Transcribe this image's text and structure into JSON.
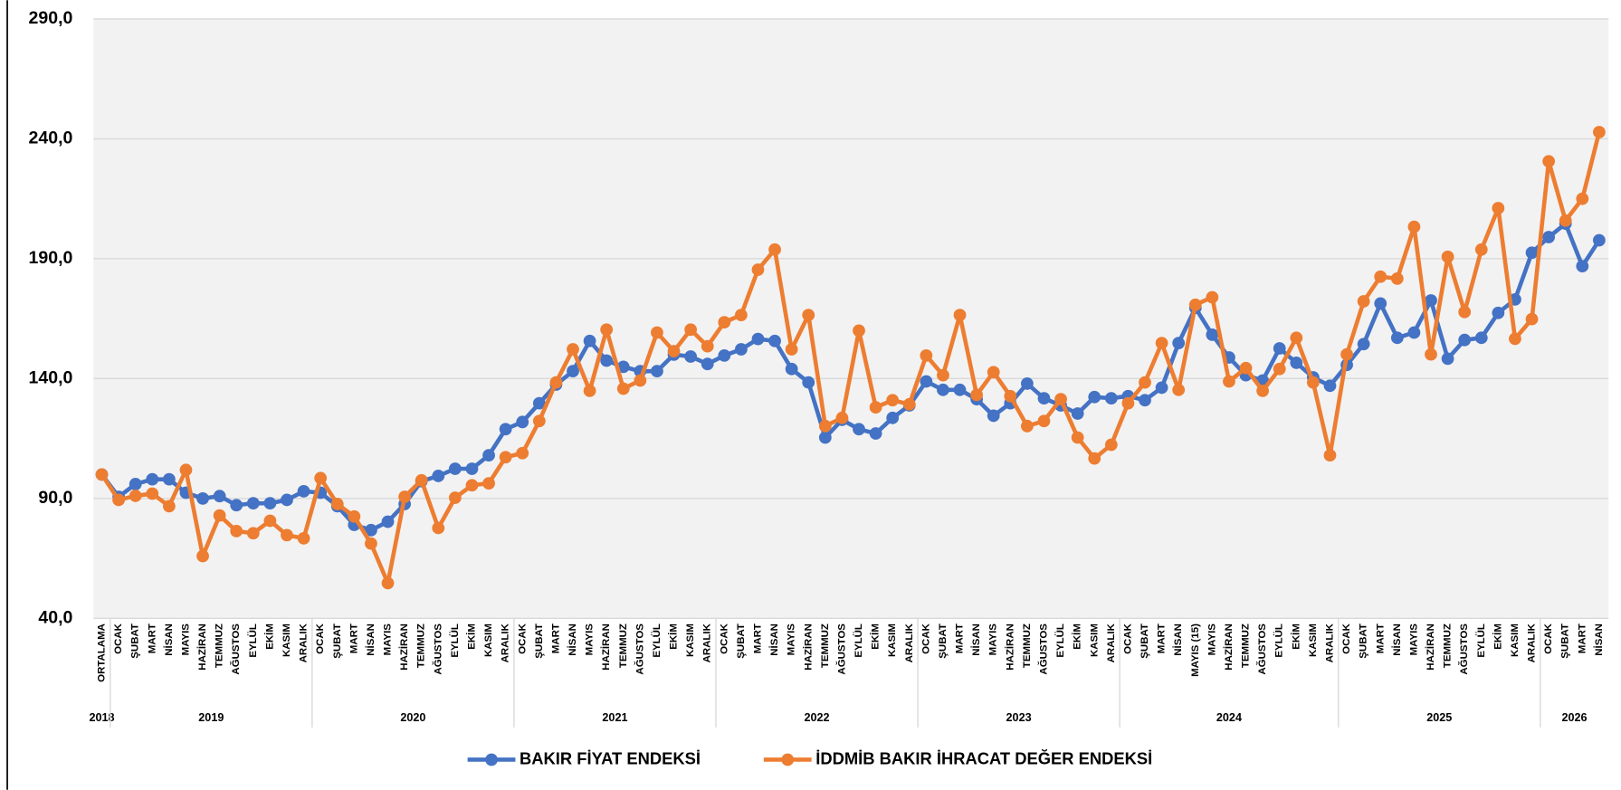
{
  "chart_data": {
    "type": "line",
    "category_groups": [
      {
        "name": "2018",
        "categories": [
          "ORTALAMA"
        ]
      },
      {
        "name": "2019",
        "categories": [
          "OCAK",
          "ŞUBAT",
          "MART",
          "NİSAN",
          "MAYIS",
          "HAZİRAN",
          "TEMMUZ",
          "AĞUSTOS",
          "EYLÜL",
          "EKİM",
          "KASIM",
          "ARALIK"
        ]
      },
      {
        "name": "2020",
        "categories": [
          "OCAK",
          "ŞUBAT",
          "MART",
          "NİSAN",
          "MAYIS",
          "HAZİRAN",
          "TEMMUZ",
          "AĞUSTOS",
          "EYLÜL",
          "EKİM",
          "KASIM",
          "ARALIK"
        ]
      },
      {
        "name": "2021",
        "categories": [
          "OCAK",
          "ŞUBAT",
          "MART",
          "NİSAN",
          "MAYIS",
          "HAZİRAN",
          "TEMMUZ",
          "AĞUSTOS",
          "EYLÜL",
          "EKİM",
          "KASIM",
          "ARALIK"
        ]
      },
      {
        "name": "2022",
        "categories": [
          "OCAK",
          "ŞUBAT",
          "MART",
          "NİSAN",
          "MAYIS",
          "HAZİRAN",
          "TEMMUZ",
          "AĞUSTOS",
          "EYLÜL",
          "EKİM",
          "KASIM",
          "ARALIK"
        ]
      },
      {
        "name": "2023",
        "categories": [
          "OCAK",
          "ŞUBAT",
          "MART",
          "NİSAN",
          "MAYIS",
          "HAZİRAN",
          "TEMMUZ",
          "AĞUSTOS",
          "EYLÜL",
          "EKİM",
          "KASIM",
          "ARALIK"
        ]
      },
      {
        "name": "2024",
        "categories": [
          "OCAK",
          "ŞUBAT",
          "MART",
          "NİSAN",
          "MAYIS (15)",
          "MAYIS",
          "HAZİRAN",
          "TEMMUZ",
          "AĞUSTOS",
          "EYLÜL",
          "EKİM",
          "KASIM",
          "ARALIK"
        ]
      },
      {
        "name": "2025",
        "categories": [
          "OCAK",
          "ŞUBAT",
          "MART",
          "NİSAN",
          "MAYIS",
          "HAZİRAN",
          "TEMMUZ",
          "AĞUSTOS",
          "EYLÜL",
          "EKİM",
          "KASIM",
          "ARALIK"
        ]
      },
      {
        "name": "2026",
        "categories": [
          "OCAK",
          "ŞUBAT",
          "MART",
          "NİSAN"
        ]
      }
    ],
    "series": [
      {
        "name": "BAKIR FİYAT ENDEKSİ",
        "color": "#4472c4",
        "values": [
          100,
          90.7,
          96,
          98,
          98,
          92.4,
          90,
          91,
          87.2,
          88,
          88,
          89.4,
          93,
          92.4,
          86.8,
          79,
          76.8,
          80.3,
          87.7,
          97.2,
          99.4,
          102.4,
          102.4,
          108,
          118.9,
          121.9,
          129.7,
          137.5,
          143.1,
          155.7,
          147.5,
          144.9,
          143.1,
          143.1,
          150,
          149.2,
          146.1,
          149.6,
          152.2,
          156.5,
          155.7,
          144,
          138.4,
          115.4,
          122.8,
          118.9,
          117.1,
          123.6,
          128.8,
          138.8,
          135.3,
          135.3,
          131.4,
          124.5,
          129.7,
          137.9,
          131.8,
          128.8,
          125.4,
          132.3,
          131.8,
          132.7,
          131,
          136.2,
          154.8,
          169.5,
          158.3,
          148.8,
          141.4,
          139.2,
          152.6,
          146.6,
          140.5,
          137,
          145.7,
          154.4,
          171.3,
          157,
          159.2,
          172.6,
          148.3,
          156.1,
          157,
          167.4,
          173,
          192.5,
          199,
          204.6,
          186.9,
          197.7
        ]
      },
      {
        "name": "İDDMİB BAKIR İHRACAT DEĞER ENDEKSİ",
        "color": "#ed7d31",
        "values": [
          100,
          89.4,
          91.1,
          92,
          86.8,
          101.9,
          66,
          82.9,
          76.4,
          75.5,
          80.7,
          74.7,
          73.4,
          98.5,
          87.7,
          82.5,
          71.2,
          54.7,
          90.7,
          97.6,
          77.7,
          90.3,
          95.5,
          96.3,
          107.2,
          108.9,
          122.3,
          138.4,
          152.2,
          134.9,
          160.4,
          135.8,
          139.2,
          159.2,
          151.4,
          160.4,
          153.5,
          163.5,
          166.5,
          185.4,
          193.8,
          152.2,
          166.5,
          120.2,
          123.6,
          160,
          128,
          131,
          129.3,
          149.6,
          141.4,
          166.5,
          133.2,
          142.7,
          132.7,
          120.2,
          122.3,
          131.4,
          115.4,
          106.7,
          112.4,
          129.7,
          138.4,
          154.8,
          135.3,
          170.8,
          173.9,
          138.8,
          144.4,
          134.9,
          144,
          157,
          138.4,
          108,
          150.1,
          172.2,
          182.5,
          181.7,
          203.3,
          150.1,
          190.8,
          167.8,
          193.8,
          211.1,
          156.6,
          164.8,
          230.6,
          205.9,
          215,
          242.8
        ]
      }
    ],
    "ylim": [
      40,
      290
    ],
    "yticks": [
      {
        "value": 40,
        "label": "40,0"
      },
      {
        "value": 90,
        "label": "90,0"
      },
      {
        "value": 140,
        "label": "140,0"
      },
      {
        "value": 190,
        "label": "190,0"
      },
      {
        "value": 240,
        "label": "240,0"
      },
      {
        "value": 290,
        "label": "290,0"
      }
    ],
    "grid": true,
    "legend": "bottom"
  }
}
